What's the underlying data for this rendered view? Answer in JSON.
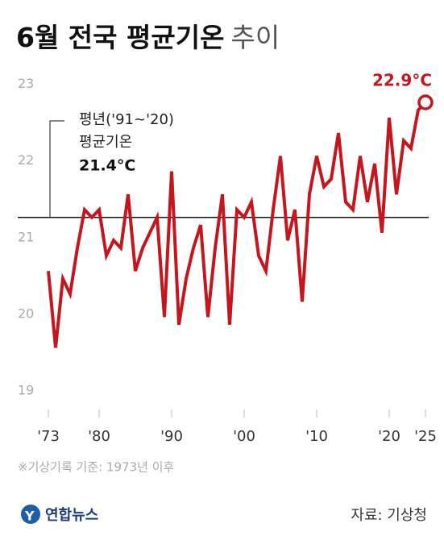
{
  "chart_data": {
    "type": "line",
    "title": "6월 전국 평균기온",
    "title_suffix": "추이",
    "x": [
      1973,
      1974,
      1975,
      1976,
      1977,
      1978,
      1979,
      1980,
      1981,
      1982,
      1983,
      1984,
      1985,
      1986,
      1987,
      1988,
      1989,
      1990,
      1991,
      1992,
      1993,
      1994,
      1995,
      1996,
      1997,
      1998,
      1999,
      2000,
      2001,
      2002,
      2003,
      2004,
      2005,
      2006,
      2007,
      2008,
      2009,
      2010,
      2011,
      2012,
      2013,
      2014,
      2015,
      2016,
      2017,
      2018,
      2019,
      2020,
      2021,
      2022,
      2023,
      2024,
      2025
    ],
    "series": [
      {
        "name": "6월 평균기온",
        "color": "#c4161c",
        "values": [
          20.7,
          19.7,
          20.6,
          20.4,
          21.0,
          21.5,
          21.4,
          21.5,
          20.9,
          21.1,
          21.0,
          21.7,
          20.7,
          21.0,
          21.2,
          21.4,
          20.1,
          22.0,
          20.0,
          20.6,
          21.0,
          21.3,
          20.1,
          21.0,
          21.7,
          20.0,
          21.5,
          21.4,
          21.6,
          20.9,
          20.7,
          21.5,
          22.2,
          21.1,
          21.5,
          20.3,
          21.7,
          22.2,
          21.8,
          21.9,
          22.5,
          21.6,
          21.5,
          22.2,
          21.6,
          22.1,
          21.2,
          22.7,
          21.7,
          22.4,
          22.3,
          22.8,
          22.9
        ]
      }
    ],
    "end_label": "22.9°C",
    "xlim": [
      1973,
      2025
    ],
    "xticks": [
      {
        "value": 1973,
        "label": "'73"
      },
      {
        "value": 1980,
        "label": "'80"
      },
      {
        "value": 1990,
        "label": "'90"
      },
      {
        "value": 2000,
        "label": "'00"
      },
      {
        "value": 2010,
        "label": "'10"
      },
      {
        "value": 2020,
        "label": "'20"
      },
      {
        "value": 2025,
        "label": "'25"
      }
    ],
    "ylim": [
      19,
      23.1
    ],
    "yticks": [
      19,
      20,
      21,
      22,
      23
    ],
    "reference": {
      "lines": [
        "평년('91~'20)",
        "평균기온"
      ],
      "value": 21.4,
      "label": "21.4°C"
    },
    "footnote": "※기상기록 기준: 1973년 이후",
    "logo": "연합뉴스",
    "source": "자료: 기상청"
  }
}
